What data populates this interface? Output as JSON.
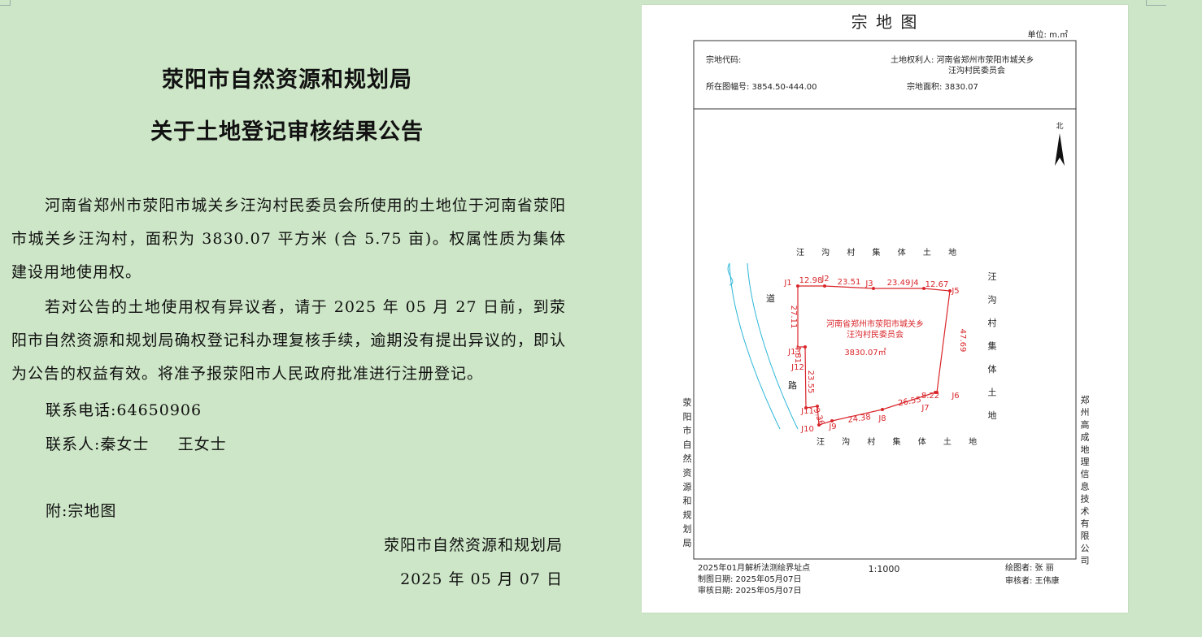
{
  "notice": {
    "title_line1": "荥阳市自然资源和规划局",
    "title_line2": "关于土地登记审核结果公告",
    "paragraph1": "河南省郑州市荥阳市城关乡汪沟村民委员会所使用的土地位于河南省荥阳市城关乡汪沟村，面积为 3830.07 平方米 (合 5.75 亩)。权属性质为集体建设用地使用权。",
    "paragraph2": "若对公告的土地使用权有异议者，请于 2025 年 05 月 27 日前，到荥阳市自然资源和规划局确权登记科办理复核手续，逾期没有提出异议的，即认为公告的权益有效。将准予报荥阳市人民政府批准进行注册登记。",
    "phone_line": "联系电话:64650906",
    "contact_line": "联系人:秦女士     王女士",
    "attachment_line": "附:宗地图",
    "issuer": "荥阳市自然资源和规划局",
    "date": "2025 年 05 月 07 日"
  },
  "map": {
    "title": "宗 地 图",
    "unit": "单位: m.㎡",
    "parcel_code_label": "宗地代码:",
    "owner_line1": "土地权利人: 河南省郑州市荥阳市城关乡",
    "owner_line2": "汪沟村民委员会",
    "sheet_no": "所在图幅号: 3854.50-444.00",
    "parcel_area": "宗地面积: 3830.07",
    "north": "北",
    "label_top": "汪 沟 村 集 体 土 地",
    "label_bottom": "汪 沟 村 集 体 土 地",
    "label_right": [
      "汪",
      "沟",
      "村",
      "集",
      "体",
      "土",
      "地"
    ],
    "road_char1": "道",
    "road_char2": "路",
    "parcel_name_line1": "河南省郑州市荥阳市城关乡",
    "parcel_name_line2": "汪沟村民委员会",
    "parcel_area_label": "3830.07㎡",
    "left_vertical": [
      "荥",
      "阳",
      "市",
      "自",
      "然",
      "资",
      "源",
      "和",
      "规",
      "划",
      "局"
    ],
    "right_vertical": [
      "郑",
      "州",
      "高",
      "成",
      "地",
      "理",
      "信",
      "息",
      "技",
      "术",
      "有",
      "限",
      "公",
      "司"
    ],
    "points": [
      "J1",
      "J2",
      "J3",
      "J4",
      "J5",
      "J6",
      "J7",
      "J8",
      "J9",
      "J10",
      "J11",
      "J12",
      "J13"
    ],
    "edges": [
      "12.98",
      "23.51",
      "23.49",
      "12.67",
      "47.69",
      "8.22",
      "26.55",
      "24.38",
      "9.36",
      "23.55",
      "4.81",
      "27.11"
    ],
    "footer_survey": "2025年01月解析法测绘界址点",
    "footer_drawdate": "制图日期: 2025年05月07日",
    "footer_checkdate": "审核日期: 2025年05月07日",
    "scale": "1:1000",
    "drawer": "绘图者: 张 丽",
    "checker": "审核者: 王伟康",
    "colors": {
      "boundary": "#d9262b",
      "road": "#2bb6d8",
      "frame": "#333333"
    }
  }
}
